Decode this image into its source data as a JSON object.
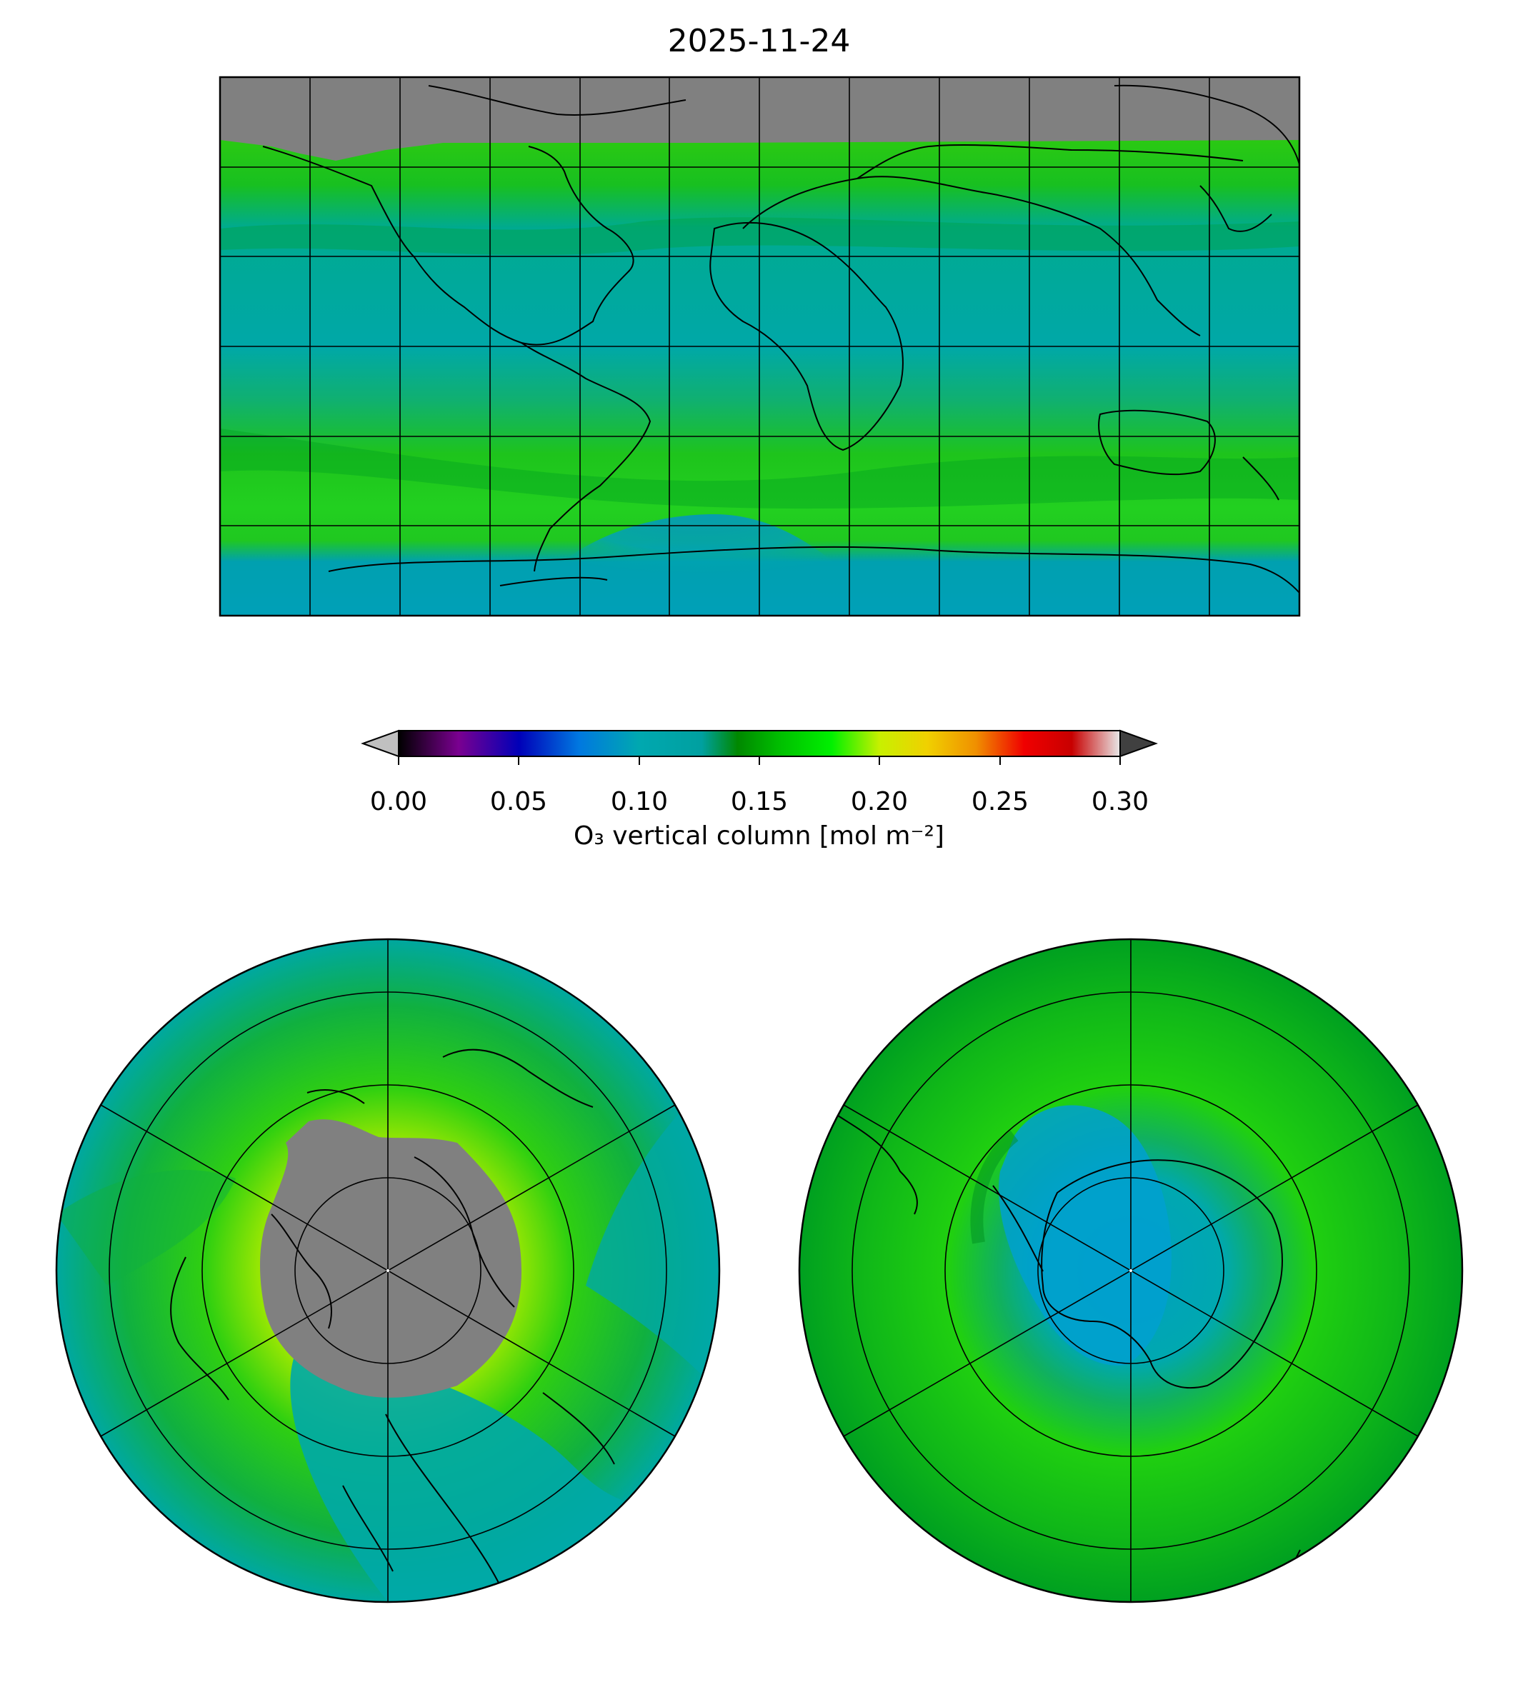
{
  "title": "2025-11-24",
  "colorbar": {
    "label": "O₃ vertical column [mol m⁻²]",
    "ticks": [
      "0.00",
      "0.05",
      "0.10",
      "0.15",
      "0.20",
      "0.25",
      "0.30"
    ],
    "range": [
      0.0,
      0.3
    ],
    "extend": "both",
    "under_color": "#c0c0c0",
    "over_color": "#404040",
    "stops": [
      {
        "value": 0.0,
        "color": "#000000"
      },
      {
        "value": 0.025,
        "color": "#7a0090"
      },
      {
        "value": 0.05,
        "color": "#0000b8"
      },
      {
        "value": 0.075,
        "color": "#0078e0"
      },
      {
        "value": 0.1,
        "color": "#00a8b0"
      },
      {
        "value": 0.125,
        "color": "#00a0a0"
      },
      {
        "value": 0.14,
        "color": "#008800"
      },
      {
        "value": 0.16,
        "color": "#00c000"
      },
      {
        "value": 0.18,
        "color": "#00f000"
      },
      {
        "value": 0.2,
        "color": "#c8f000"
      },
      {
        "value": 0.22,
        "color": "#f0d000"
      },
      {
        "value": 0.24,
        "color": "#f09000"
      },
      {
        "value": 0.26,
        "color": "#f00000"
      },
      {
        "value": 0.28,
        "color": "#c80000"
      },
      {
        "value": 0.3,
        "color": "#e8e8e8"
      }
    ]
  },
  "panels": [
    {
      "name": "global",
      "projection": "plate-carree",
      "missing_color": "#808080"
    },
    {
      "name": "north-pole",
      "projection": "north-polar-stereographic",
      "missing_color": "#808080"
    },
    {
      "name": "south-pole",
      "projection": "south-polar-stereographic",
      "missing_color": "#808080"
    }
  ]
}
